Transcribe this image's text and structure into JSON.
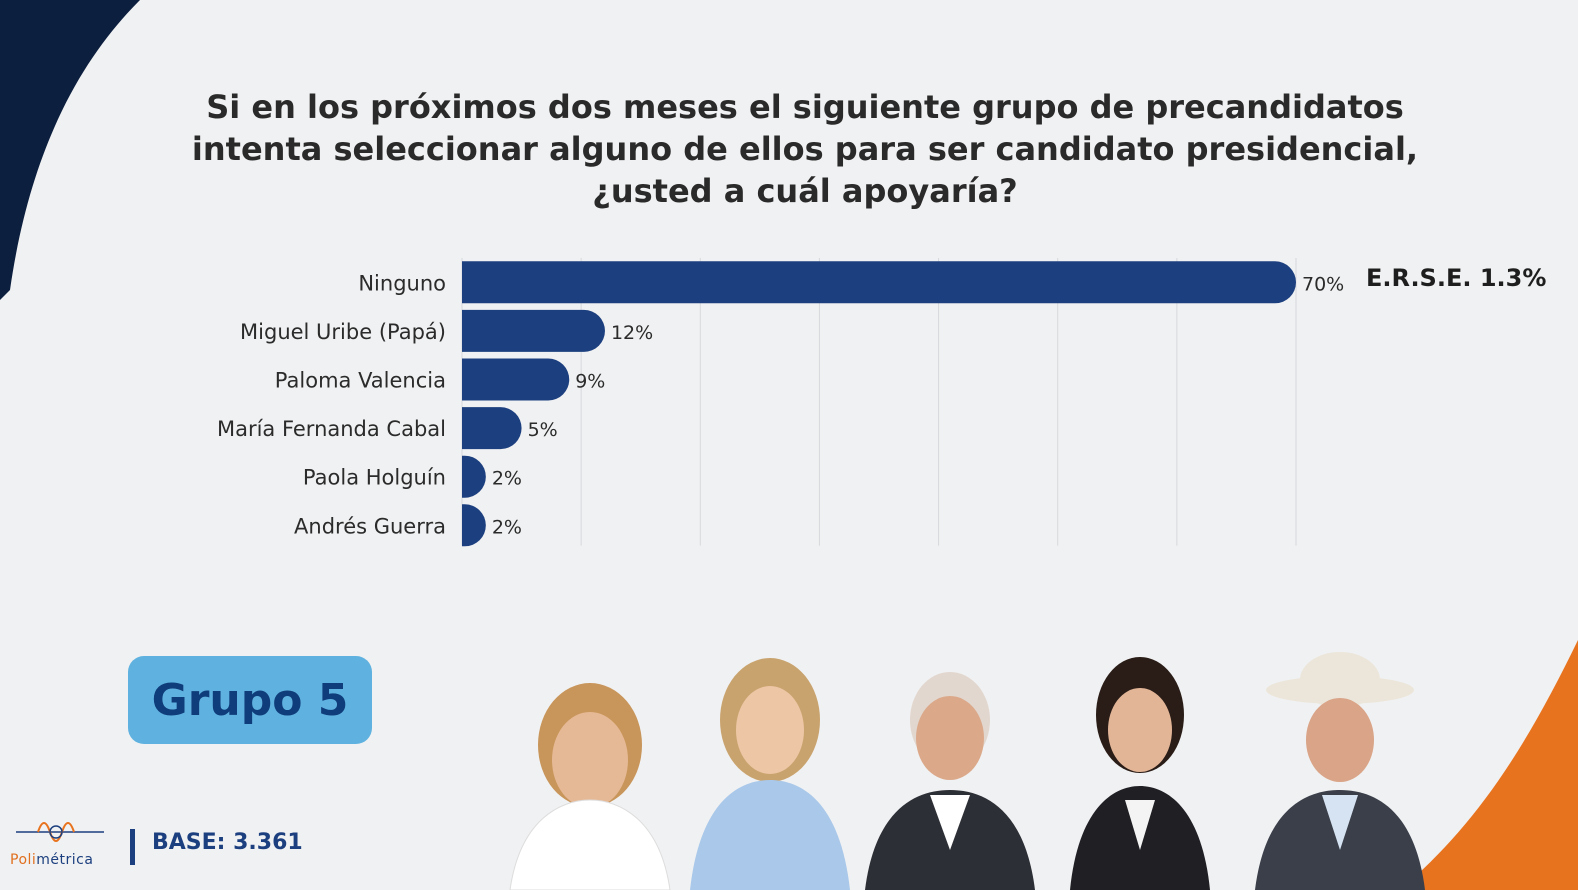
{
  "title": {
    "line1": "Si en los próximos dos meses el siguiente grupo de precandidatos",
    "line2": "intenta seleccionar alguno de ellos para ser candidato presidencial,",
    "line3": "¿usted a cuál apoyaría?"
  },
  "chart_data": {
    "type": "bar",
    "orientation": "horizontal",
    "categories": [
      "Ninguno",
      "Miguel Uribe (Papá)",
      "Paloma Valencia",
      "María Fernanda Cabal",
      "Paola Holguín",
      "Andrés Guerra"
    ],
    "values": [
      70,
      12,
      9,
      5,
      2,
      2
    ],
    "value_labels": [
      "70%",
      "12%",
      "9%",
      "5%",
      "2%",
      "2%"
    ],
    "xlim": [
      0,
      70
    ],
    "grid": true,
    "bar_color": "#1c3f7f"
  },
  "erse_label": "E.R.S.E. 1.3%",
  "group_badge": "Grupo 5",
  "base_label": "BASE: 3.361",
  "logo": {
    "prefix": "Poli",
    "suffix": "métrica"
  },
  "colors": {
    "navy": "#1c3f7f",
    "dark_navy": "#0d1f3f",
    "orange": "#e8731e",
    "badge": "#5fb2e0",
    "background": "#f0f1f2"
  }
}
